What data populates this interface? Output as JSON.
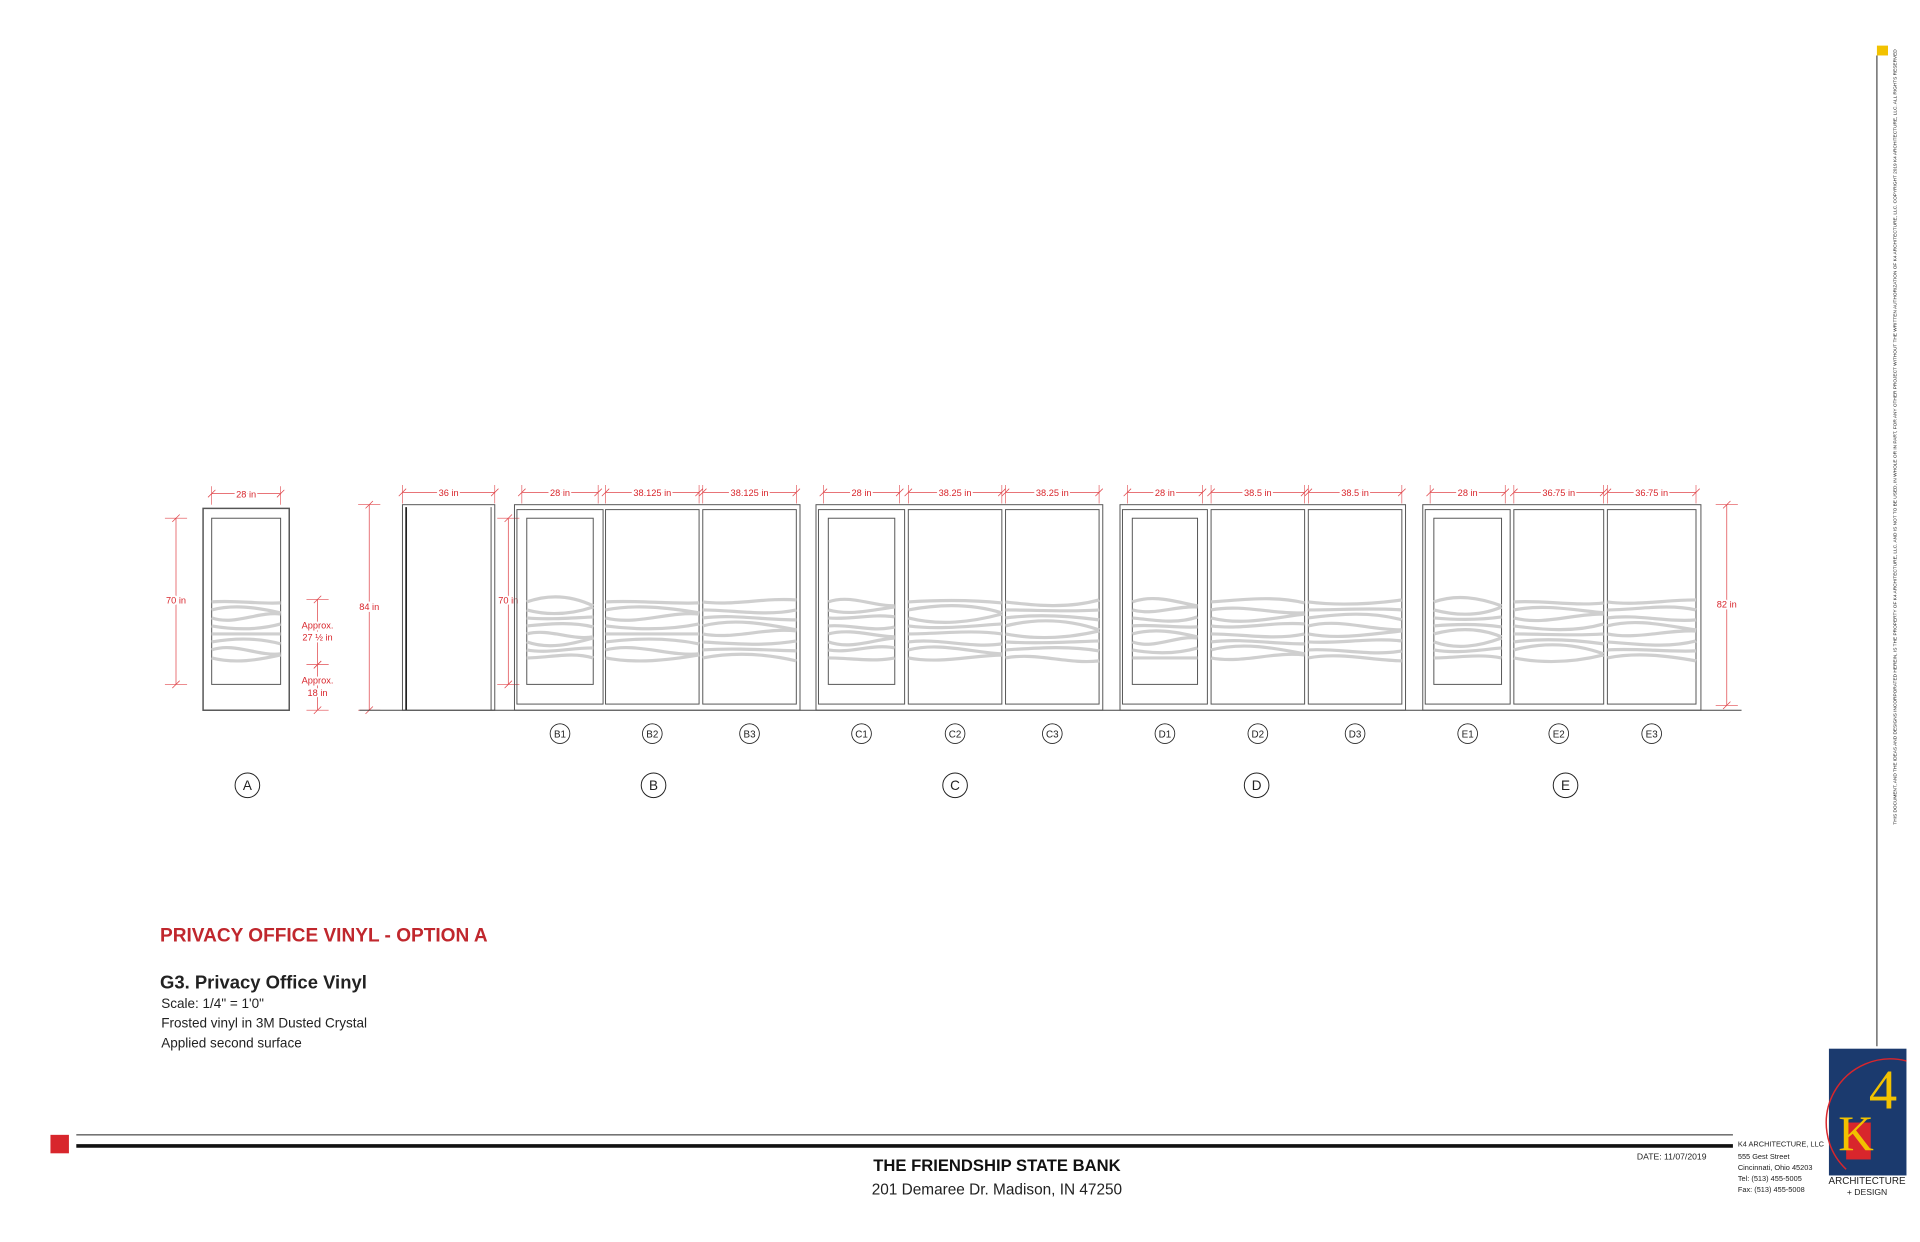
{
  "elevations": {
    "A": {
      "tag": "A",
      "width": "28 in",
      "height": "70 in",
      "vinyl_height": [
        "Approx.",
        "27 ½ in"
      ],
      "sill_height": [
        "Approx.",
        "18 in"
      ]
    },
    "door": {
      "width": "36 in",
      "height": "84 in",
      "window_height": "70 in"
    },
    "groups": [
      {
        "tag": "B",
        "panels": [
          {
            "tag": "B1",
            "width": "28 in"
          },
          {
            "tag": "B2",
            "width": "38.125 in"
          },
          {
            "tag": "B3",
            "width": "38.125 in"
          }
        ]
      },
      {
        "tag": "C",
        "panels": [
          {
            "tag": "C1",
            "width": "28 in"
          },
          {
            "tag": "C2",
            "width": "38.25 in"
          },
          {
            "tag": "C3",
            "width": "38.25 in"
          }
        ]
      },
      {
        "tag": "D",
        "panels": [
          {
            "tag": "D1",
            "width": "28 in"
          },
          {
            "tag": "D2",
            "width": "38.5 in"
          },
          {
            "tag": "D3",
            "width": "38.5 in"
          }
        ]
      },
      {
        "tag": "E",
        "panels": [
          {
            "tag": "E1",
            "width": "28 in"
          },
          {
            "tag": "E2",
            "width": "36.75 in"
          },
          {
            "tag": "E3",
            "width": "36.75 in"
          }
        ]
      }
    ],
    "overall_height": "82 in"
  },
  "title": "PRIVACY OFFICE VINYL - OPTION A",
  "drawing": {
    "name": "G3. Privacy Office Vinyl",
    "notes": [
      "Scale: 1/4\" = 1'0\"",
      "Frosted vinyl in 3M Dusted Crystal",
      "Applied second surface"
    ]
  },
  "footer": {
    "project": "THE FRIENDSHIP STATE BANK",
    "address": "201 Demaree Dr. Madison, IN 47250",
    "date": "DATE: 11/07/2019",
    "firm": [
      "K4 ARCHITECTURE, LLC",
      "555 Gest Street",
      "Cincinnati, Ohio 45203",
      "Tel: (513) 455-5005",
      "Fax: (513) 455-5008"
    ],
    "logo": {
      "mark": "4",
      "letter": "K",
      "line1": "ARCHITECTURE",
      "line2": "+ DESIGN"
    },
    "copyright": "THIS DOCUMENT, AND THE IDEAS AND DESIGNS INCORPORATED HEREIN, IS THE PROPERTY OF K4 ARCHITECTURE, LLC. AND IS NOT TO BE USED, IN WHOLE OR IN PART, FOR ANY OTHER PROJECT WITHOUT THE WRITTEN AUTHORIZATION OF K4 ARCHITECTURE, LLC. COPYRIGHT 2019 K4 ARCHITECTURE, LLC. ALL RIGHTS RESERVED"
  }
}
